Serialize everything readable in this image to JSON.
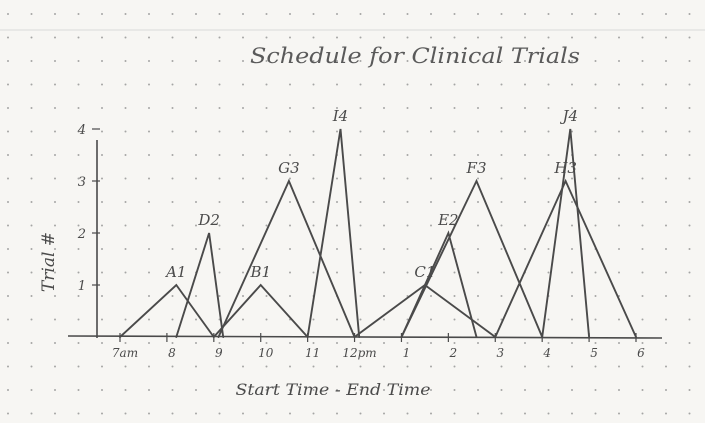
{
  "chart_data": {
    "type": "line",
    "title": "Schedule for Clinical Trials",
    "xlabel": "Start Time - End Time",
    "ylabel": "Trial #",
    "x_tick_values": [
      7,
      8,
      9,
      10,
      11,
      12,
      13,
      14,
      15,
      16,
      17,
      18
    ],
    "x_tick_labels": [
      "7am",
      "8",
      "9",
      "10",
      "11",
      "12pm",
      "1",
      "2",
      "3",
      "4",
      "5",
      "6"
    ],
    "y_ticks": [
      1,
      2,
      3,
      4
    ],
    "xlim": [
      7,
      18
    ],
    "ylim": [
      0,
      4.3
    ],
    "grid": "dot-paper",
    "series": [
      {
        "name": "A1",
        "start": 7.0,
        "peak_x": 8.2,
        "peak_y": 1,
        "end": 9.0
      },
      {
        "name": "D2",
        "start": 8.2,
        "peak_x": 8.9,
        "peak_y": 2,
        "end": 9.2
      },
      {
        "name": "B1",
        "start": 9.0,
        "peak_x": 10.0,
        "peak_y": 1,
        "end": 11.0
      },
      {
        "name": "G3",
        "start": 9.1,
        "peak_x": 10.6,
        "peak_y": 3,
        "end": 12.0
      },
      {
        "name": "I4",
        "start": 11.0,
        "peak_x": 11.7,
        "peak_y": 4,
        "end": 12.1
      },
      {
        "name": "C1",
        "start": 12.0,
        "peak_x": 13.5,
        "peak_y": 1,
        "end": 15.0
      },
      {
        "name": "E2",
        "start": 13.0,
        "peak_x": 14.0,
        "peak_y": 2,
        "end": 14.6
      },
      {
        "name": "F3",
        "start": 13.0,
        "peak_x": 14.6,
        "peak_y": 3,
        "end": 16.0
      },
      {
        "name": "H3",
        "start": 15.0,
        "peak_x": 16.5,
        "peak_y": 3,
        "end": 18.0
      },
      {
        "name": "J4",
        "start": 16.0,
        "peak_x": 16.6,
        "peak_y": 4,
        "end": 17.0
      }
    ]
  },
  "colors": {
    "paper": "#f7f6f3",
    "ink": "#4a4a4a",
    "dot": "#8a8a8a"
  }
}
